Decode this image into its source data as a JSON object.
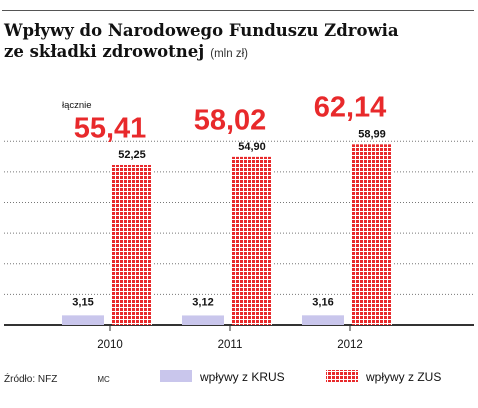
{
  "title_line1": "Wpływy do Narodowego Funduszu Zdrowia",
  "title_line2": "ze składki zdrowotnej",
  "unit": "(mln zł)",
  "total_label": "łącznie",
  "source": "Źródło: NFZ",
  "credit": "MC",
  "colors": {
    "krus": "#c9c6ec",
    "zus": "#e8292b",
    "total": "#e8292b",
    "axis": "#333333"
  },
  "chart_data": {
    "type": "bar",
    "stacked": false,
    "categories": [
      "2010",
      "2011",
      "2012"
    ],
    "series": [
      {
        "name": "wpływy z KRUS",
        "values": [
          3.15,
          3.12,
          3.16
        ],
        "labels": [
          "3,15",
          "3,12",
          "3,16"
        ]
      },
      {
        "name": "wpływy z ZUS",
        "values": [
          52.25,
          54.9,
          58.99
        ],
        "labels": [
          "52,25",
          "54,90",
          "58,99"
        ]
      }
    ],
    "totals": [
      55.41,
      58.02,
      62.14
    ],
    "total_labels": [
      "55,41",
      "58,02",
      "62,14"
    ],
    "ylim": [
      0,
      80
    ],
    "grid": "dotted horizontal",
    "legend_position": "bottom"
  }
}
